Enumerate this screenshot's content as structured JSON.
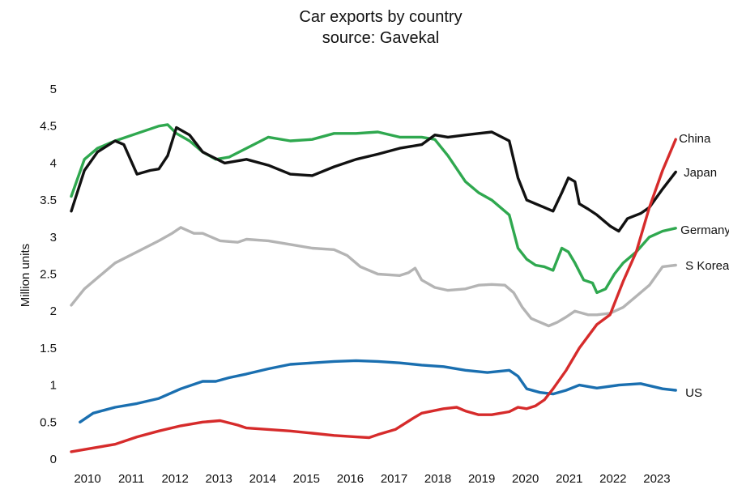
{
  "chart_data": {
    "type": "line",
    "title": "Car exports by country",
    "subtitle": "source: Gavekal",
    "xlabel": "",
    "ylabel": "Million units",
    "xlim": [
      2010,
      2024
    ],
    "ylim": [
      0,
      5
    ],
    "x_ticks": [
      2010,
      2011,
      2012,
      2013,
      2014,
      2015,
      2016,
      2017,
      2018,
      2019,
      2020,
      2021,
      2022,
      2023
    ],
    "y_ticks": [
      0,
      0.5,
      1,
      1.5,
      2,
      2.5,
      3,
      3.5,
      4,
      4.5,
      5
    ],
    "y_tick_labels": [
      "0",
      "0.5",
      "1",
      "1.5",
      "2",
      "2.5",
      "3",
      "3.5",
      "4",
      "4.5",
      "5"
    ],
    "grid": false,
    "legend": "labels at line ends (right)",
    "series": [
      {
        "name": "China",
        "color": "#d62b2b",
        "x": [
          2010.0,
          2010.5,
          2011.0,
          2011.5,
          2012.0,
          2012.5,
          2013.0,
          2013.4,
          2013.8,
          2014.0,
          2014.5,
          2015.0,
          2015.5,
          2016.0,
          2016.5,
          2016.8,
          2017.0,
          2017.4,
          2017.8,
          2018.0,
          2018.5,
          2018.8,
          2019.0,
          2019.3,
          2019.6,
          2020.0,
          2020.2,
          2020.4,
          2020.6,
          2020.8,
          2021.0,
          2021.3,
          2021.6,
          2022.0,
          2022.3,
          2022.6,
          2022.9,
          2023.2,
          2023.5,
          2023.8
        ],
        "y": [
          0.1,
          0.15,
          0.2,
          0.3,
          0.38,
          0.45,
          0.5,
          0.52,
          0.46,
          0.42,
          0.4,
          0.38,
          0.35,
          0.32,
          0.3,
          0.29,
          0.33,
          0.4,
          0.55,
          0.62,
          0.68,
          0.7,
          0.65,
          0.6,
          0.6,
          0.64,
          0.7,
          0.68,
          0.72,
          0.8,
          0.95,
          1.2,
          1.5,
          1.82,
          1.95,
          2.4,
          2.8,
          3.4,
          3.9,
          4.32
        ]
      },
      {
        "name": "Japan",
        "color": "#111111",
        "x": [
          2010.0,
          2010.3,
          2010.6,
          2011.0,
          2011.2,
          2011.5,
          2011.8,
          2012.0,
          2012.2,
          2012.4,
          2012.7,
          2013.0,
          2013.5,
          2014.0,
          2014.5,
          2015.0,
          2015.5,
          2016.0,
          2016.5,
          2017.0,
          2017.5,
          2018.0,
          2018.3,
          2018.6,
          2019.0,
          2019.3,
          2019.6,
          2020.0,
          2020.2,
          2020.4,
          2020.6,
          2020.8,
          2021.0,
          2021.2,
          2021.35,
          2021.5,
          2021.6,
          2021.8,
          2022.0,
          2022.3,
          2022.5,
          2022.7,
          2023.0,
          2023.2,
          2023.5,
          2023.8
        ],
        "y": [
          3.35,
          3.9,
          4.15,
          4.3,
          4.25,
          3.85,
          3.9,
          3.92,
          4.1,
          4.48,
          4.38,
          4.15,
          4.0,
          4.05,
          3.97,
          3.85,
          3.83,
          3.95,
          4.05,
          4.12,
          4.2,
          4.25,
          4.38,
          4.35,
          4.38,
          4.4,
          4.42,
          4.3,
          3.8,
          3.5,
          3.45,
          3.4,
          3.35,
          3.6,
          3.8,
          3.75,
          3.45,
          3.38,
          3.3,
          3.15,
          3.08,
          3.25,
          3.32,
          3.4,
          3.65,
          3.88
        ]
      },
      {
        "name": "Germany",
        "color": "#2fa84f",
        "x": [
          2010.0,
          2010.3,
          2010.6,
          2011.0,
          2011.5,
          2012.0,
          2012.2,
          2012.4,
          2012.7,
          2013.0,
          2013.3,
          2013.6,
          2014.0,
          2014.5,
          2015.0,
          2015.5,
          2016.0,
          2016.5,
          2017.0,
          2017.5,
          2018.0,
          2018.3,
          2018.6,
          2019.0,
          2019.3,
          2019.6,
          2020.0,
          2020.2,
          2020.4,
          2020.6,
          2020.8,
          2021.0,
          2021.2,
          2021.35,
          2021.5,
          2021.7,
          2021.9,
          2022.0,
          2022.2,
          2022.4,
          2022.6,
          2022.9,
          2023.2,
          2023.5,
          2023.8
        ],
        "y": [
          3.55,
          4.05,
          4.2,
          4.3,
          4.4,
          4.5,
          4.52,
          4.4,
          4.3,
          4.15,
          4.05,
          4.08,
          4.2,
          4.35,
          4.3,
          4.32,
          4.4,
          4.4,
          4.42,
          4.35,
          4.35,
          4.32,
          4.1,
          3.75,
          3.6,
          3.5,
          3.3,
          2.85,
          2.7,
          2.62,
          2.6,
          2.55,
          2.85,
          2.8,
          2.65,
          2.42,
          2.38,
          2.25,
          2.3,
          2.5,
          2.65,
          2.8,
          3.0,
          3.08,
          3.12
        ]
      },
      {
        "name": "S Korea",
        "color": "#b4b4b4",
        "x": [
          2010.0,
          2010.3,
          2010.6,
          2011.0,
          2011.5,
          2012.0,
          2012.3,
          2012.5,
          2012.8,
          2013.0,
          2013.4,
          2013.8,
          2014.0,
          2014.5,
          2015.0,
          2015.5,
          2016.0,
          2016.3,
          2016.6,
          2017.0,
          2017.5,
          2017.7,
          2017.85,
          2018.0,
          2018.3,
          2018.6,
          2019.0,
          2019.3,
          2019.6,
          2019.9,
          2020.1,
          2020.3,
          2020.5,
          2020.7,
          2020.9,
          2021.1,
          2021.3,
          2021.5,
          2021.8,
          2022.0,
          2022.3,
          2022.6,
          2022.9,
          2023.2,
          2023.5,
          2023.8
        ],
        "y": [
          2.08,
          2.3,
          2.45,
          2.65,
          2.8,
          2.95,
          3.05,
          3.13,
          3.05,
          3.05,
          2.95,
          2.93,
          2.97,
          2.95,
          2.9,
          2.85,
          2.83,
          2.75,
          2.6,
          2.5,
          2.48,
          2.52,
          2.58,
          2.42,
          2.32,
          2.28,
          2.3,
          2.35,
          2.36,
          2.35,
          2.25,
          2.05,
          1.9,
          1.85,
          1.8,
          1.85,
          1.92,
          2.0,
          1.95,
          1.95,
          1.97,
          2.05,
          2.2,
          2.35,
          2.6,
          2.62
        ]
      },
      {
        "name": "US",
        "color": "#1a6fb0",
        "x": [
          2010.2,
          2010.5,
          2011.0,
          2011.5,
          2012.0,
          2012.5,
          2013.0,
          2013.3,
          2013.6,
          2014.0,
          2014.5,
          2015.0,
          2015.5,
          2016.0,
          2016.5,
          2017.0,
          2017.5,
          2018.0,
          2018.5,
          2019.0,
          2019.5,
          2020.0,
          2020.2,
          2020.4,
          2020.7,
          2021.0,
          2021.3,
          2021.6,
          2022.0,
          2022.5,
          2023.0,
          2023.5,
          2023.8
        ],
        "y": [
          0.5,
          0.62,
          0.7,
          0.75,
          0.82,
          0.95,
          1.05,
          1.05,
          1.1,
          1.15,
          1.22,
          1.28,
          1.3,
          1.32,
          1.33,
          1.32,
          1.3,
          1.27,
          1.25,
          1.2,
          1.17,
          1.2,
          1.12,
          0.95,
          0.9,
          0.88,
          0.93,
          1.0,
          0.96,
          1.0,
          1.02,
          0.95,
          0.93
        ]
      }
    ]
  }
}
